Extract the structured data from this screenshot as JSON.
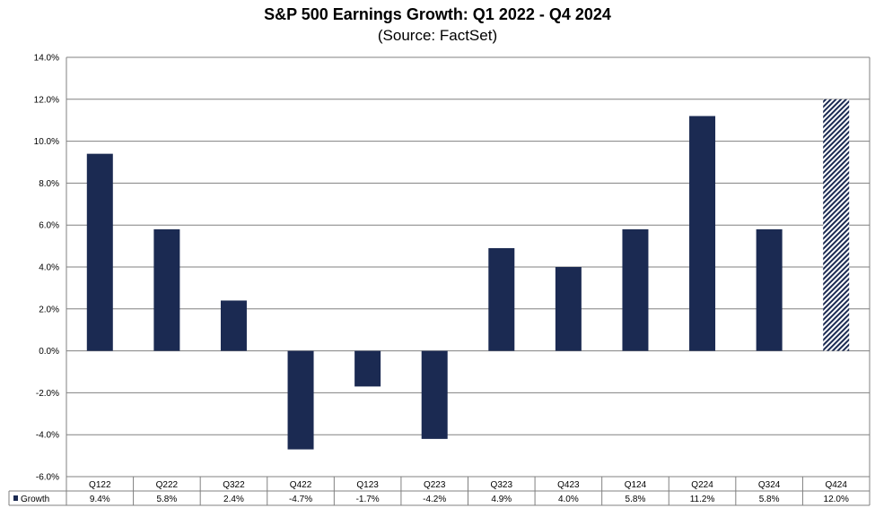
{
  "chart_data": {
    "type": "bar",
    "title": "S&P 500 Earnings Growth:  Q1 2022 - Q4 2024",
    "subtitle": "(Source: FactSet)",
    "categories": [
      "Q122",
      "Q222",
      "Q322",
      "Q422",
      "Q123",
      "Q223",
      "Q323",
      "Q423",
      "Q124",
      "Q224",
      "Q324",
      "Q424"
    ],
    "series": [
      {
        "name": "Growth",
        "values": [
          9.4,
          5.8,
          2.4,
          -4.7,
          -1.7,
          -4.2,
          4.9,
          4.0,
          5.8,
          11.2,
          5.8,
          12.0
        ],
        "value_labels": [
          "9.4%",
          "5.8%",
          "2.4%",
          "-4.7%",
          "-1.7%",
          "-4.2%",
          "4.9%",
          "4.0%",
          "5.8%",
          "11.2%",
          "5.8%",
          "12.0%"
        ]
      }
    ],
    "estimated_categories": [
      "Q424"
    ],
    "ylim": [
      -6.0,
      14.0
    ],
    "yticks": [
      14.0,
      12.0,
      10.0,
      8.0,
      6.0,
      4.0,
      2.0,
      0.0,
      -2.0,
      -4.0,
      -6.0
    ],
    "ytick_labels": [
      "14.0%",
      "12.0%",
      "10.0%",
      "8.0%",
      "6.0%",
      "4.0%",
      "2.0%",
      "0.0%",
      "-2.0%",
      "-4.0%",
      "-6.0%"
    ],
    "grid": true,
    "data_table": true,
    "colors": {
      "bar": "#1b2a52",
      "axis": "#808080",
      "grid": "#808080"
    }
  }
}
